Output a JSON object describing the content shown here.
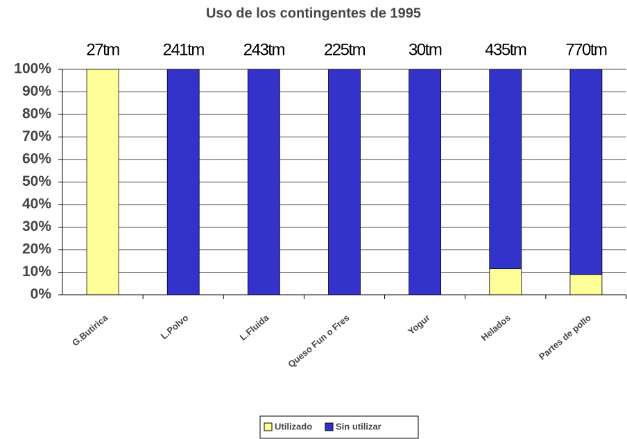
{
  "chart_data": {
    "type": "stacked_bar_100",
    "title": "Uso de los contingentes de 1995",
    "categories": [
      "G.Butirica",
      "L.Polvo",
      "L.Fluida",
      "Queso Fun o Fres",
      "Yogur",
      "Helados",
      "Partes de pollo"
    ],
    "annotations": [
      "27tm",
      "241tm",
      "243tm",
      "225tm",
      "30tm",
      "435tm",
      "770tm"
    ],
    "series": [
      {
        "name": "Utilizado",
        "color": "#ffff99",
        "values": [
          100,
          0,
          0,
          0,
          0,
          11.5,
          9
        ]
      },
      {
        "name": "Sin utilizar",
        "color": "#3333cc",
        "values": [
          0,
          100,
          100,
          100,
          100,
          88.5,
          91
        ]
      }
    ],
    "ylim": [
      0,
      100
    ],
    "yticks": [
      {
        "value": 0,
        "label": "0%"
      },
      {
        "value": 10,
        "label": "10%"
      },
      {
        "value": 20,
        "label": "20%"
      },
      {
        "value": 30,
        "label": "30%"
      },
      {
        "value": 40,
        "label": "40%"
      },
      {
        "value": 50,
        "label": "50%"
      },
      {
        "value": 60,
        "label": "60%"
      },
      {
        "value": 70,
        "label": "70%"
      },
      {
        "value": 80,
        "label": "80%"
      },
      {
        "value": 90,
        "label": "90%"
      },
      {
        "value": 100,
        "label": "100%"
      }
    ],
    "grid": true,
    "legend": "bottom"
  }
}
